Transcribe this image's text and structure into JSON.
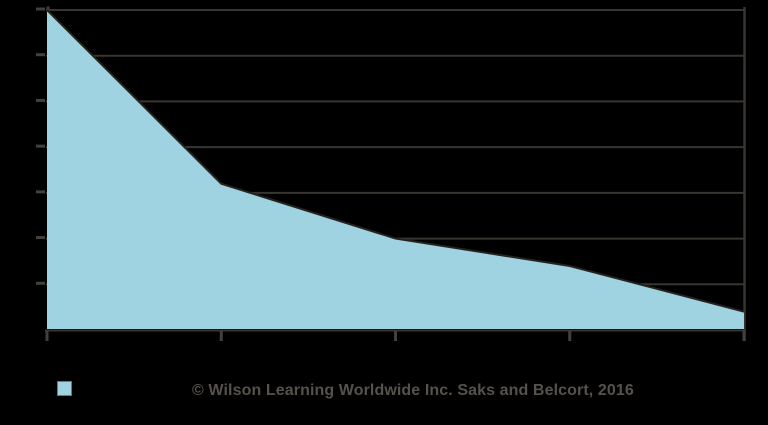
{
  "chart_data": {
    "type": "area",
    "categories": [
      "",
      "",
      "",
      "",
      ""
    ],
    "series": [
      {
        "name": "",
        "values": [
          100,
          62,
          50,
          44,
          34
        ]
      }
    ],
    "title": "",
    "xlabel": "",
    "ylabel": "",
    "ylim": [
      30,
      100
    ],
    "ytick_step": 10,
    "grid": true,
    "gridline_count": 7,
    "x_tick_count": 5,
    "legend_position": "bottom-left"
  },
  "footer": {
    "copyright": "© Wilson Learning Worldwide Inc. Saks and Belcort, 2016"
  },
  "colors": {
    "background": "#000000",
    "area_fill": "#9fd3e1",
    "area_edge": "#262220",
    "gridline": "#393531",
    "axis": "#393531",
    "tick_mark": "#45403c",
    "footer_text": "#56514c",
    "legend_swatch_fill": "#9fd3e1",
    "legend_swatch_border": "#557e8c"
  }
}
